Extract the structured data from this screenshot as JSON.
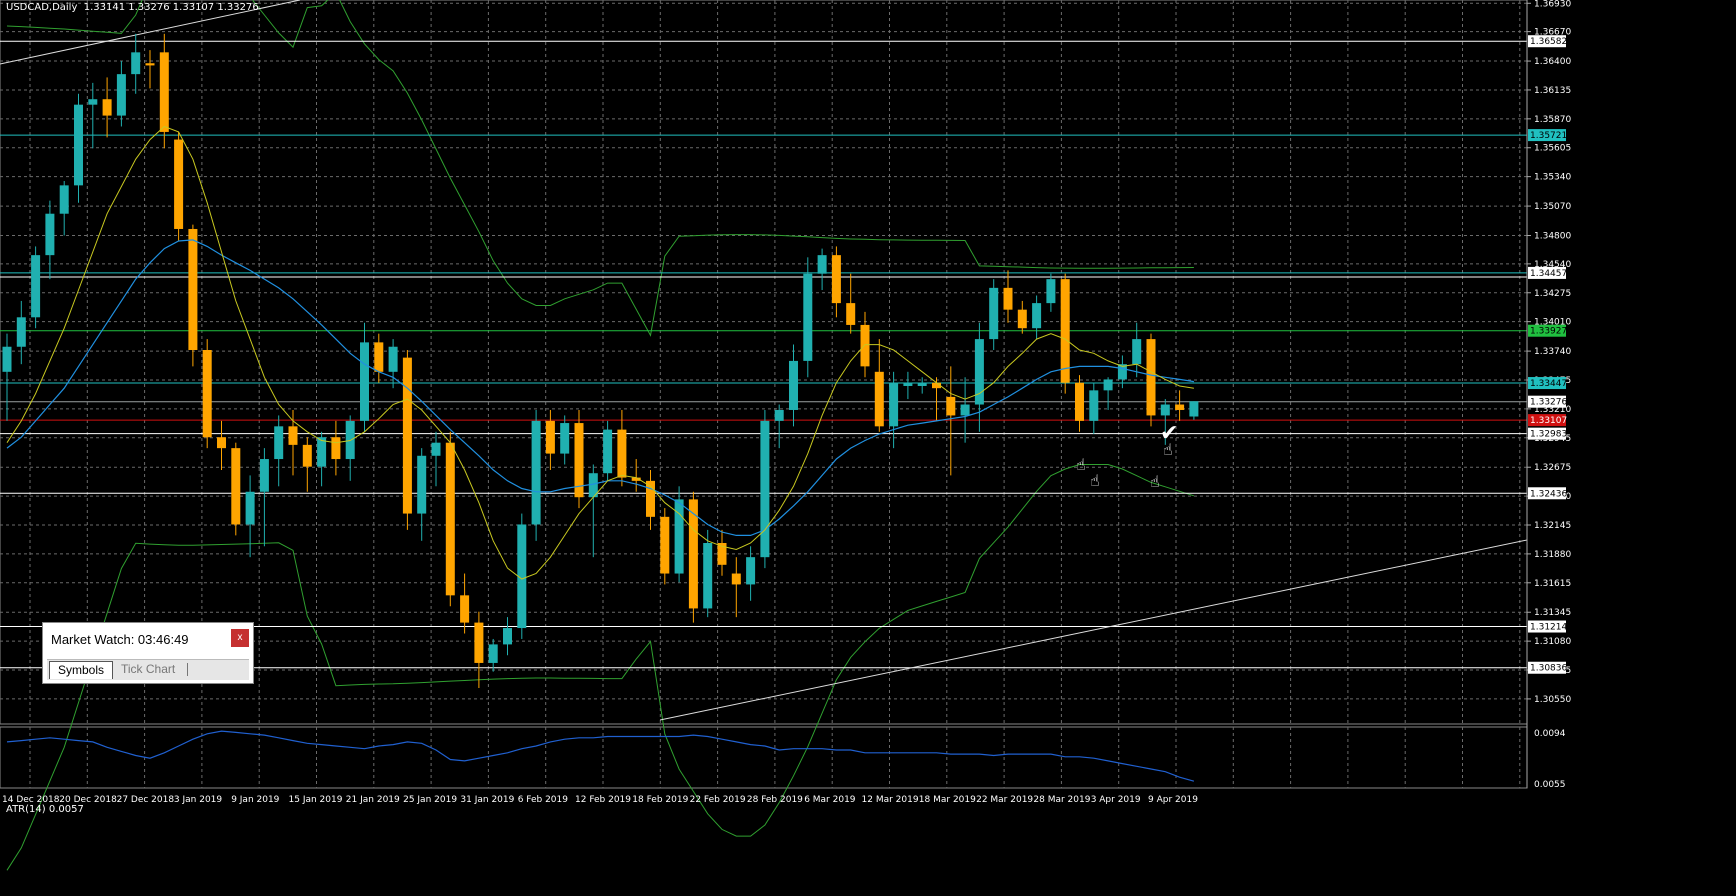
{
  "header": {
    "symbol": "USDCAD,Daily",
    "ohlc": "1.33141 1.33276 1.33107 1.33276"
  },
  "market_watch": {
    "title": "Market Watch: 03:46:49",
    "close_label": "x",
    "tabs": [
      "Symbols",
      "Tick Chart"
    ]
  },
  "chart_data": {
    "type": "candlestick",
    "symbol": "USDCAD",
    "timeframe": "Daily",
    "ylim": [
      1.3032,
      1.3696
    ],
    "price_ticks": [
      1.3693,
      1.3667,
      1.364,
      1.36135,
      1.3587,
      1.35605,
      1.3534,
      1.3507,
      1.348,
      1.3454,
      1.34275,
      1.3401,
      1.3374,
      1.33475,
      1.3321,
      1.32945,
      1.32675,
      1.3241,
      1.32145,
      1.3188,
      1.31615,
      1.31345,
      1.3108,
      1.30815,
      1.3055
    ],
    "x_labels": [
      "14 Dec 2018",
      "20 Dec 2018",
      "27 Dec 2018",
      "3 Jan 2019",
      "9 Jan 2019",
      "15 Jan 2019",
      "21 Jan 2019",
      "25 Jan 2019",
      "31 Jan 2019",
      "6 Feb 2019",
      "12 Feb 2019",
      "18 Feb 2019",
      "22 Feb 2019",
      "28 Feb 2019",
      "6 Mar 2019",
      "12 Mar 2019",
      "18 Mar 2019",
      "22 Mar 2019",
      "28 Mar 2019",
      "3 Apr 2019",
      "9 Apr 2019"
    ],
    "level_labels": [
      {
        "text": "1.36582",
        "price": 1.36582,
        "color": "#ffffff"
      },
      {
        "text": "1.35721",
        "price": 1.35721,
        "color": "#20c0c0"
      },
      {
        "text": "1.34457",
        "price": 1.34457,
        "color": "#ffffff"
      },
      {
        "text": "1.33927",
        "price": 1.33927,
        "color": "#20c040"
      },
      {
        "text": "1.33447",
        "price": 1.33447,
        "color": "#20c0c0"
      },
      {
        "text": "1.33276",
        "price": 1.33276,
        "color": "#ffffff"
      },
      {
        "text": "1.33107",
        "price": 1.33107,
        "color": "#d01010"
      },
      {
        "text": "1.32983",
        "price": 1.32983,
        "color": "#ffffff"
      },
      {
        "text": "1.32436",
        "price": 1.32436,
        "color": "#ffffff"
      },
      {
        "text": "1.31214",
        "price": 1.31214,
        "color": "#ffffff"
      },
      {
        "text": "1.30836",
        "price": 1.30836,
        "color": "#ffffff"
      }
    ],
    "horizontal_levels": [
      {
        "price": 1.36582,
        "color": "#ffffff"
      },
      {
        "price": 1.35721,
        "color": "#20c0c0"
      },
      {
        "price": 1.34457,
        "color": "#20c0c0"
      },
      {
        "price": 1.3442,
        "color": "#ffffff"
      },
      {
        "price": 1.33927,
        "color": "#20c040"
      },
      {
        "price": 1.33447,
        "color": "#20c0c0"
      },
      {
        "price": 1.33276,
        "color": "#9aa0a0"
      },
      {
        "price": 1.33107,
        "color": "#d01010"
      },
      {
        "price": 1.32983,
        "color": "#ffffff"
      },
      {
        "price": 1.32436,
        "color": "#ffffff"
      },
      {
        "price": 1.31214,
        "color": "#ffffff"
      },
      {
        "price": 1.30836,
        "color": "#ffffff"
      }
    ],
    "colors": {
      "bull": "#20b0b0",
      "bear": "#ffa500",
      "ma_fast": "#c8c820",
      "ma_slow": "#2090e0",
      "bands": "#30a030",
      "atr": "#2060d0",
      "grid": "#6b6b6b"
    },
    "candles": [
      {
        "o": 1.3355,
        "h": 1.339,
        "l": 1.331,
        "c": 1.3378
      },
      {
        "o": 1.3378,
        "h": 1.342,
        "l": 1.3362,
        "c": 1.3405
      },
      {
        "o": 1.3405,
        "h": 1.347,
        "l": 1.3395,
        "c": 1.3462
      },
      {
        "o": 1.3462,
        "h": 1.3512,
        "l": 1.344,
        "c": 1.35
      },
      {
        "o": 1.35,
        "h": 1.353,
        "l": 1.348,
        "c": 1.3526
      },
      {
        "o": 1.3526,
        "h": 1.361,
        "l": 1.351,
        "c": 1.36
      },
      {
        "o": 1.36,
        "h": 1.362,
        "l": 1.356,
        "c": 1.3605
      },
      {
        "o": 1.3605,
        "h": 1.3625,
        "l": 1.357,
        "c": 1.359
      },
      {
        "o": 1.359,
        "h": 1.364,
        "l": 1.358,
        "c": 1.3628
      },
      {
        "o": 1.3628,
        "h": 1.3665,
        "l": 1.361,
        "c": 1.3648
      },
      {
        "o": 1.3638,
        "h": 1.365,
        "l": 1.3615,
        "c": 1.3636
      },
      {
        "o": 1.3648,
        "h": 1.3665,
        "l": 1.356,
        "c": 1.3575
      },
      {
        "o": 1.3568,
        "h": 1.3575,
        "l": 1.3475,
        "c": 1.3486
      },
      {
        "o": 1.3486,
        "h": 1.349,
        "l": 1.336,
        "c": 1.3375
      },
      {
        "o": 1.3375,
        "h": 1.3385,
        "l": 1.3285,
        "c": 1.3295
      },
      {
        "o": 1.3295,
        "h": 1.331,
        "l": 1.3265,
        "c": 1.3285
      },
      {
        "o": 1.3285,
        "h": 1.329,
        "l": 1.3205,
        "c": 1.3215
      },
      {
        "o": 1.3215,
        "h": 1.326,
        "l": 1.3185,
        "c": 1.3245
      },
      {
        "o": 1.3245,
        "h": 1.3285,
        "l": 1.3195,
        "c": 1.3275
      },
      {
        "o": 1.3275,
        "h": 1.3315,
        "l": 1.325,
        "c": 1.3305
      },
      {
        "o": 1.3305,
        "h": 1.332,
        "l": 1.326,
        "c": 1.3288
      },
      {
        "o": 1.3288,
        "h": 1.3295,
        "l": 1.3245,
        "c": 1.3268
      },
      {
        "o": 1.3268,
        "h": 1.33,
        "l": 1.325,
        "c": 1.3295
      },
      {
        "o": 1.3295,
        "h": 1.331,
        "l": 1.326,
        "c": 1.3275
      },
      {
        "o": 1.3275,
        "h": 1.3315,
        "l": 1.3255,
        "c": 1.331
      },
      {
        "o": 1.331,
        "h": 1.34,
        "l": 1.33,
        "c": 1.3382
      },
      {
        "o": 1.3382,
        "h": 1.339,
        "l": 1.3345,
        "c": 1.3355
      },
      {
        "o": 1.3355,
        "h": 1.3385,
        "l": 1.334,
        "c": 1.3378
      },
      {
        "o": 1.3368,
        "h": 1.3375,
        "l": 1.321,
        "c": 1.3225
      },
      {
        "o": 1.3225,
        "h": 1.3285,
        "l": 1.32,
        "c": 1.3278
      },
      {
        "o": 1.3278,
        "h": 1.33,
        "l": 1.325,
        "c": 1.329
      },
      {
        "o": 1.329,
        "h": 1.33,
        "l": 1.314,
        "c": 1.315
      },
      {
        "o": 1.315,
        "h": 1.317,
        "l": 1.3115,
        "c": 1.3125
      },
      {
        "o": 1.3125,
        "h": 1.3135,
        "l": 1.3065,
        "c": 1.3088
      },
      {
        "o": 1.3088,
        "h": 1.311,
        "l": 1.308,
        "c": 1.3105
      },
      {
        "o": 1.3105,
        "h": 1.313,
        "l": 1.3095,
        "c": 1.312
      },
      {
        "o": 1.312,
        "h": 1.3225,
        "l": 1.311,
        "c": 1.3215
      },
      {
        "o": 1.3215,
        "h": 1.332,
        "l": 1.32,
        "c": 1.331
      },
      {
        "o": 1.331,
        "h": 1.332,
        "l": 1.3265,
        "c": 1.328
      },
      {
        "o": 1.328,
        "h": 1.3315,
        "l": 1.327,
        "c": 1.3308
      },
      {
        "o": 1.3308,
        "h": 1.332,
        "l": 1.323,
        "c": 1.324
      },
      {
        "o": 1.324,
        "h": 1.327,
        "l": 1.3185,
        "c": 1.3262
      },
      {
        "o": 1.3262,
        "h": 1.331,
        "l": 1.3255,
        "c": 1.3302
      },
      {
        "o": 1.3302,
        "h": 1.332,
        "l": 1.325,
        "c": 1.3258
      },
      {
        "o": 1.3258,
        "h": 1.3275,
        "l": 1.3245,
        "c": 1.3255
      },
      {
        "o": 1.3255,
        "h": 1.3265,
        "l": 1.321,
        "c": 1.3222
      },
      {
        "o": 1.3222,
        "h": 1.323,
        "l": 1.316,
        "c": 1.317
      },
      {
        "o": 1.317,
        "h": 1.325,
        "l": 1.3162,
        "c": 1.3238
      },
      {
        "o": 1.3238,
        "h": 1.3245,
        "l": 1.3125,
        "c": 1.3138
      },
      {
        "o": 1.3138,
        "h": 1.321,
        "l": 1.313,
        "c": 1.3198
      },
      {
        "o": 1.3198,
        "h": 1.321,
        "l": 1.3168,
        "c": 1.3178
      },
      {
        "o": 1.317,
        "h": 1.3185,
        "l": 1.313,
        "c": 1.316
      },
      {
        "o": 1.316,
        "h": 1.3195,
        "l": 1.3145,
        "c": 1.3185
      },
      {
        "o": 1.3185,
        "h": 1.332,
        "l": 1.3175,
        "c": 1.331
      },
      {
        "o": 1.331,
        "h": 1.3325,
        "l": 1.3285,
        "c": 1.332
      },
      {
        "o": 1.332,
        "h": 1.338,
        "l": 1.3305,
        "c": 1.3365
      },
      {
        "o": 1.3365,
        "h": 1.346,
        "l": 1.335,
        "c": 1.3445
      },
      {
        "o": 1.3445,
        "h": 1.3468,
        "l": 1.343,
        "c": 1.3462
      },
      {
        "o": 1.3462,
        "h": 1.347,
        "l": 1.3405,
        "c": 1.3418
      },
      {
        "o": 1.3418,
        "h": 1.3445,
        "l": 1.339,
        "c": 1.3398
      },
      {
        "o": 1.3398,
        "h": 1.341,
        "l": 1.335,
        "c": 1.336
      },
      {
        "o": 1.3355,
        "h": 1.3385,
        "l": 1.33,
        "c": 1.3305
      },
      {
        "o": 1.3305,
        "h": 1.3355,
        "l": 1.3285,
        "c": 1.3345
      },
      {
        "o": 1.3342,
        "h": 1.3355,
        "l": 1.333,
        "c": 1.3345
      },
      {
        "o": 1.3342,
        "h": 1.335,
        "l": 1.3335,
        "c": 1.3345
      },
      {
        "o": 1.3345,
        "h": 1.335,
        "l": 1.331,
        "c": 1.334
      },
      {
        "o": 1.3332,
        "h": 1.336,
        "l": 1.326,
        "c": 1.3315
      },
      {
        "o": 1.3315,
        "h": 1.335,
        "l": 1.329,
        "c": 1.3325
      },
      {
        "o": 1.3325,
        "h": 1.34,
        "l": 1.33,
        "c": 1.3385
      },
      {
        "o": 1.3385,
        "h": 1.344,
        "l": 1.3375,
        "c": 1.3432
      },
      {
        "o": 1.3432,
        "h": 1.3448,
        "l": 1.34,
        "c": 1.3412
      },
      {
        "o": 1.3412,
        "h": 1.342,
        "l": 1.339,
        "c": 1.3395
      },
      {
        "o": 1.3395,
        "h": 1.3425,
        "l": 1.3385,
        "c": 1.3418
      },
      {
        "o": 1.3418,
        "h": 1.3445,
        "l": 1.341,
        "c": 1.344
      },
      {
        "o": 1.344,
        "h": 1.3445,
        "l": 1.3335,
        "c": 1.3345
      },
      {
        "o": 1.3345,
        "h": 1.3352,
        "l": 1.33,
        "c": 1.331
      },
      {
        "o": 1.331,
        "h": 1.3345,
        "l": 1.3298,
        "c": 1.3338
      },
      {
        "o": 1.3338,
        "h": 1.335,
        "l": 1.332,
        "c": 1.3348
      },
      {
        "o": 1.3348,
        "h": 1.337,
        "l": 1.334,
        "c": 1.3362
      },
      {
        "o": 1.3362,
        "h": 1.34,
        "l": 1.335,
        "c": 1.3385
      },
      {
        "o": 1.3385,
        "h": 1.339,
        "l": 1.3305,
        "c": 1.3315
      },
      {
        "o": 1.3315,
        "h": 1.333,
        "l": 1.3288,
        "c": 1.3325
      },
      {
        "o": 1.3325,
        "h": 1.3338,
        "l": 1.331,
        "c": 1.332
      },
      {
        "o": 1.3314,
        "h": 1.3328,
        "l": 1.3311,
        "c": 1.3328
      }
    ],
    "ma_fast": [
      1.329,
      1.331,
      1.3335,
      1.3365,
      1.3395,
      1.343,
      1.3465,
      1.35,
      1.3525,
      1.355,
      1.3568,
      1.358,
      1.3575,
      1.355,
      1.351,
      1.3465,
      1.342,
      1.3385,
      1.335,
      1.3325,
      1.331,
      1.33,
      1.3292,
      1.329,
      1.3292,
      1.33,
      1.3312,
      1.3325,
      1.333,
      1.332,
      1.3305,
      1.329,
      1.3265,
      1.3235,
      1.32,
      1.3175,
      1.3165,
      1.317,
      1.3185,
      1.3205,
      1.3225,
      1.324,
      1.3255,
      1.326,
      1.3258,
      1.325,
      1.3235,
      1.3225,
      1.321,
      1.32,
      1.3195,
      1.3192,
      1.3198,
      1.321,
      1.3228,
      1.325,
      1.328,
      1.3315,
      1.3345,
      1.3365,
      1.338,
      1.338,
      1.3375,
      1.3365,
      1.3355,
      1.3345,
      1.3335,
      1.333,
      1.3335,
      1.3345,
      1.336,
      1.3372,
      1.3385,
      1.339,
      1.3385,
      1.3375,
      1.3372,
      1.3365,
      1.336,
      1.3362,
      1.3355,
      1.3348,
      1.3342,
      1.334
    ],
    "ma_slow": [
      1.3285,
      1.3295,
      1.331,
      1.3325,
      1.334,
      1.336,
      1.338,
      1.34,
      1.342,
      1.344,
      1.3455,
      1.3468,
      1.3475,
      1.3476,
      1.347,
      1.3462,
      1.3455,
      1.3448,
      1.344,
      1.3432,
      1.3422,
      1.341,
      1.3398,
      1.3385,
      1.3372,
      1.3362,
      1.3355,
      1.335,
      1.334,
      1.3328,
      1.3315,
      1.3302,
      1.329,
      1.3278,
      1.3265,
      1.3255,
      1.3248,
      1.3245,
      1.3245,
      1.3248,
      1.325,
      1.3252,
      1.3255,
      1.3255,
      1.3252,
      1.3248,
      1.3242,
      1.3235,
      1.3225,
      1.3215,
      1.3208,
      1.3205,
      1.3205,
      1.321,
      1.322,
      1.3232,
      1.3245,
      1.326,
      1.3275,
      1.3285,
      1.3292,
      1.3298,
      1.3302,
      1.3306,
      1.3308,
      1.331,
      1.3312,
      1.3314,
      1.3318,
      1.3325,
      1.3332,
      1.334,
      1.3348,
      1.3355,
      1.3358,
      1.336,
      1.336,
      1.336,
      1.3358,
      1.3355,
      1.3352,
      1.335,
      1.3348,
      1.3346
    ],
    "atr": [
      0.0086,
      0.0087,
      0.0088,
      0.0089,
      0.0088,
      0.0087,
      0.0086,
      0.0082,
      0.0079,
      0.0076,
      0.0074,
      0.0078,
      0.0083,
      0.0088,
      0.0092,
      0.0094,
      0.0093,
      0.0092,
      0.0091,
      0.0089,
      0.0087,
      0.0085,
      0.0084,
      0.0083,
      0.0082,
      0.0081,
      0.0083,
      0.0084,
      0.0086,
      0.0085,
      0.008,
      0.0073,
      0.0072,
      0.0074,
      0.0076,
      0.0078,
      0.0081,
      0.0083,
      0.0086,
      0.0088,
      0.0089,
      0.0089,
      0.009,
      0.009,
      0.009,
      0.009,
      0.009,
      0.009,
      0.0091,
      0.009,
      0.0088,
      0.0086,
      0.0084,
      0.0083,
      0.008,
      0.0081,
      0.0081,
      0.0081,
      0.008,
      0.008,
      0.0078,
      0.0078,
      0.0078,
      0.0078,
      0.0078,
      0.0078,
      0.0077,
      0.0077,
      0.0077,
      0.0076,
      0.0077,
      0.0077,
      0.0077,
      0.0077,
      0.0075,
      0.0075,
      0.0074,
      0.0072,
      0.007,
      0.0068,
      0.0066,
      0.0064,
      0.006,
      0.0057
    ],
    "atr_title": "ATR(14) 0.0057",
    "atr_ticks": [
      "0.0094",
      "0.0055"
    ]
  }
}
